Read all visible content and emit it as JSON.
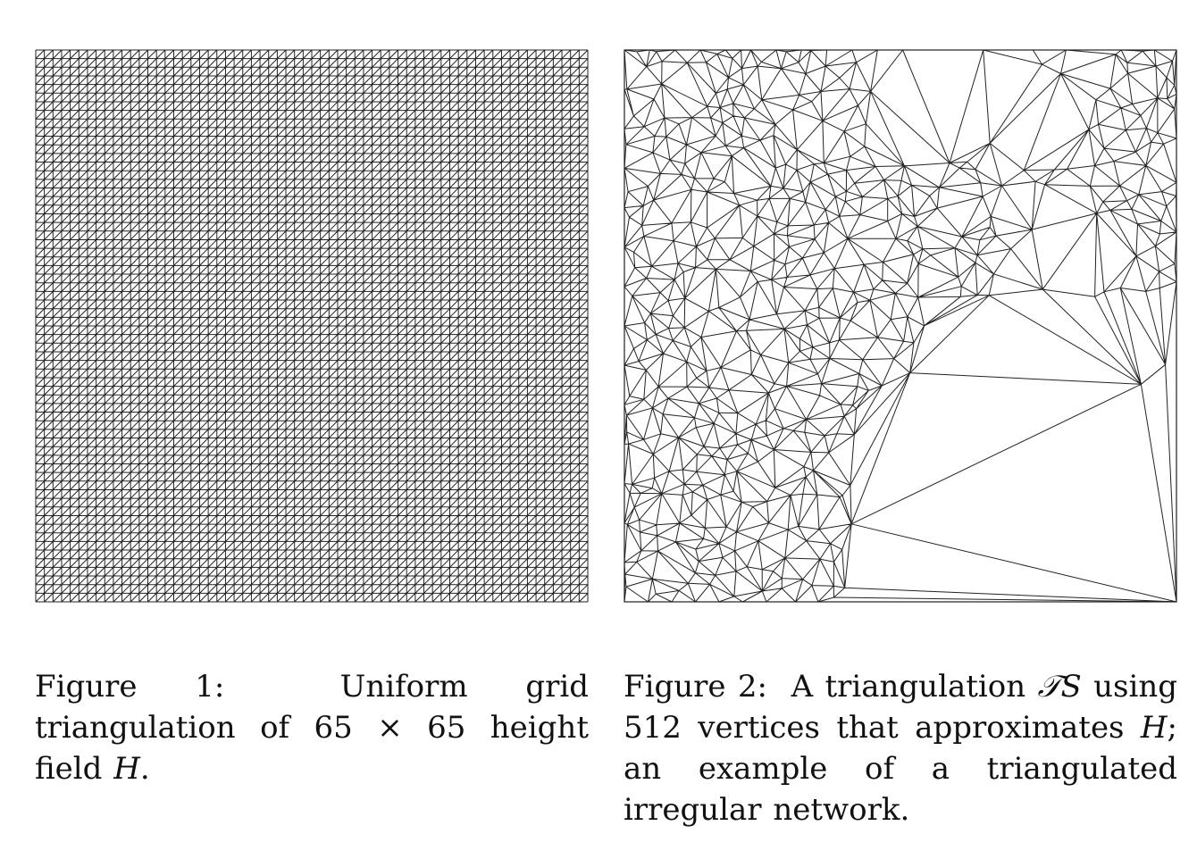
{
  "figure1": {
    "caption": {
      "label": "Figure 1:",
      "text_before": "Uniform grid triangulation of 65 × 65 height field",
      "math": "H",
      "text_after": "."
    },
    "grid_divisions": 64,
    "stroke_color": "#222222"
  },
  "figure2": {
    "caption": {
      "label": "Figure 2:",
      "text_before": "A triangulation",
      "math1": "𝒯S",
      "text_middle": "using 512 vertices that approximates",
      "math2": "H",
      "text_after": "; an example of a triangulated irregular network."
    },
    "stroke_color": "#222222"
  }
}
